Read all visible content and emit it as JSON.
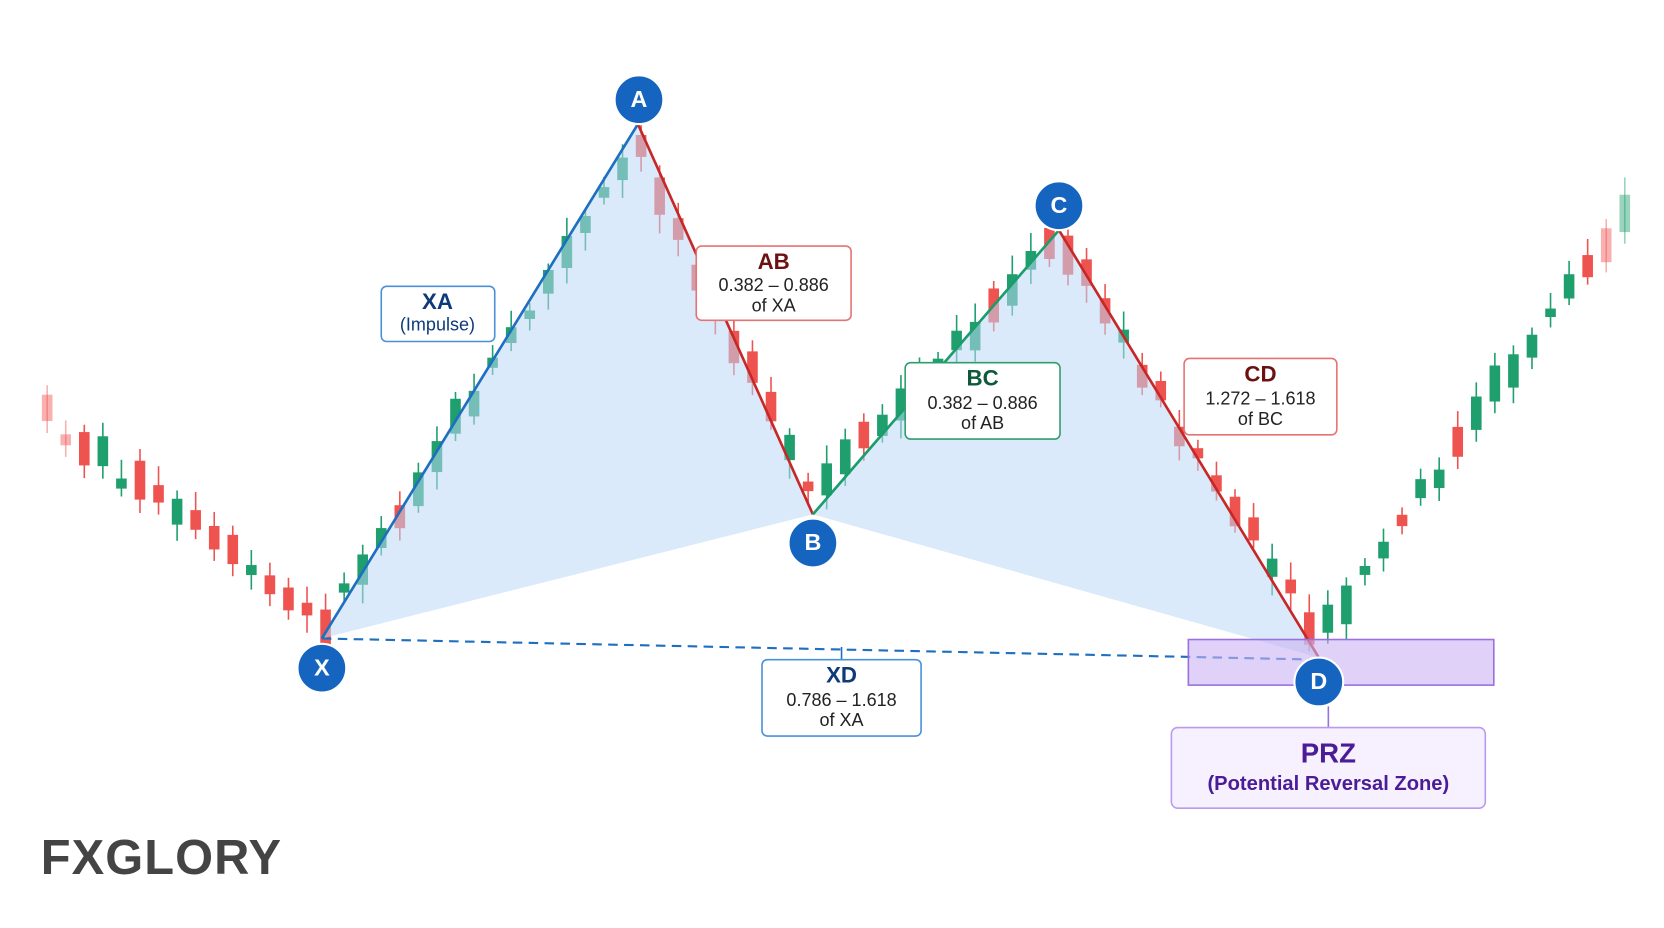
{
  "points": [
    {
      "label": "X"
    },
    {
      "label": "A"
    },
    {
      "label": "B"
    },
    {
      "label": "C"
    },
    {
      "label": "D"
    }
  ],
  "legs": {
    "xa": {
      "title": "XA",
      "subtitle": "(Impulse)"
    },
    "ab": {
      "title": "AB",
      "ratio": "0.382 – 0.886",
      "reference": "of XA"
    },
    "bc": {
      "title": "BC",
      "ratio": "0.382 – 0.886",
      "reference": "of AB"
    },
    "cd": {
      "title": "CD",
      "ratio": "1.272 – 1.618",
      "reference": "of BC"
    },
    "xd": {
      "title": "XD",
      "ratio": "0.786 – 1.618",
      "reference": "of XA"
    }
  },
  "prz": {
    "title": "PRZ",
    "subtitle": "(Potential Reversal Zone)"
  },
  "logo": {
    "text": "FXGLORY"
  }
}
